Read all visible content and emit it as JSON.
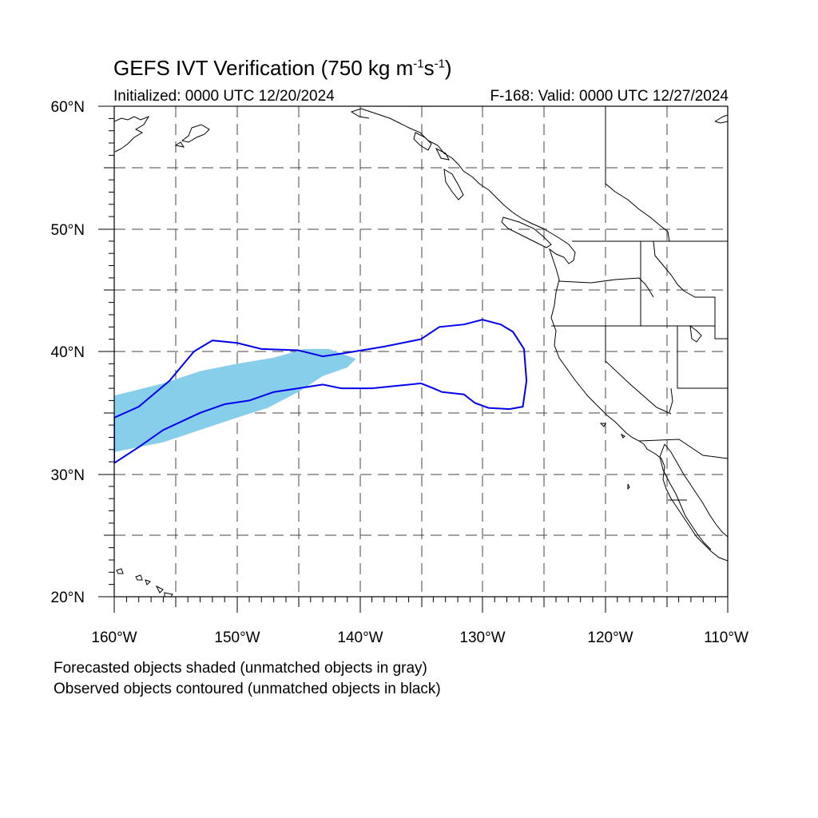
{
  "title": {
    "text": "GEFS IVT Verification (750 kg m",
    "exp1": "-1",
    "mid": "s",
    "exp2": "-1",
    "close": ")"
  },
  "subtitle_left": "Initialized: 0000 UTC 12/20/2024",
  "subtitle_right": "F-168: Valid: 0000 UTC 12/27/2024",
  "axes": {
    "lat_labels": [
      "60°N",
      "50°N",
      "40°N",
      "30°N",
      "20°N"
    ],
    "lon_labels": [
      "160°W",
      "150°W",
      "140°W",
      "130°W",
      "120°W",
      "110°W"
    ],
    "lat_range": [
      20,
      60
    ],
    "lon_range": [
      -160,
      -110
    ],
    "grid": true
  },
  "legend": {
    "line1": "Forecasted objects shaded (unmatched objects in gray)",
    "line2": "Observed objects contoured (unmatched objects in black)"
  },
  "colors": {
    "forecast_fill": "#87ceeb",
    "observed_contour": "#0000ee",
    "coastline": "#000000",
    "grid": "#444444"
  },
  "chart_data": {
    "type": "map",
    "forecast_object": {
      "polygon_lonlat": [
        [
          -160,
          36.4
        ],
        [
          -156,
          37.4
        ],
        [
          -153,
          38.4
        ],
        [
          -150,
          39.0
        ],
        [
          -147,
          39.5
        ],
        [
          -144.5,
          40.2
        ],
        [
          -142.5,
          40.2
        ],
        [
          -140.3,
          39.4
        ],
        [
          -141,
          38.7
        ],
        [
          -143,
          38.0
        ],
        [
          -145,
          36.7
        ],
        [
          -147.5,
          35.4
        ],
        [
          -150,
          34.6
        ],
        [
          -153,
          33.6
        ],
        [
          -156,
          32.6
        ],
        [
          -160,
          31.8
        ]
      ]
    },
    "observed_object": {
      "polygon_lonlat": [
        [
          -160,
          34.6
        ],
        [
          -158,
          35.5
        ],
        [
          -155.5,
          37.6
        ],
        [
          -153.5,
          40.0
        ],
        [
          -152,
          40.9
        ],
        [
          -150,
          40.7
        ],
        [
          -148,
          40.2
        ],
        [
          -145,
          40.1
        ],
        [
          -143,
          39.6
        ],
        [
          -141,
          39.9
        ],
        [
          -138,
          40.4
        ],
        [
          -135,
          41.0
        ],
        [
          -133.5,
          42.0
        ],
        [
          -131.5,
          42.2
        ],
        [
          -130,
          42.6
        ],
        [
          -128.5,
          42.2
        ],
        [
          -127.5,
          41.6
        ],
        [
          -126.6,
          40.2
        ],
        [
          -126.4,
          37.6
        ],
        [
          -126.7,
          35.5
        ],
        [
          -127.8,
          35.3
        ],
        [
          -129.5,
          35.4
        ],
        [
          -130.6,
          35.8
        ],
        [
          -131.5,
          36.5
        ],
        [
          -133.3,
          36.7
        ],
        [
          -134,
          37.0
        ],
        [
          -135,
          37.4
        ],
        [
          -137,
          37.2
        ],
        [
          -139,
          37.0
        ],
        [
          -141.5,
          37.0
        ],
        [
          -143,
          37.3
        ],
        [
          -145,
          37.0
        ],
        [
          -147,
          36.7
        ],
        [
          -149,
          36.0
        ],
        [
          -151,
          35.7
        ],
        [
          -153,
          35.0
        ],
        [
          -156,
          33.6
        ],
        [
          -158,
          32.2
        ],
        [
          -160,
          30.9
        ]
      ]
    }
  }
}
